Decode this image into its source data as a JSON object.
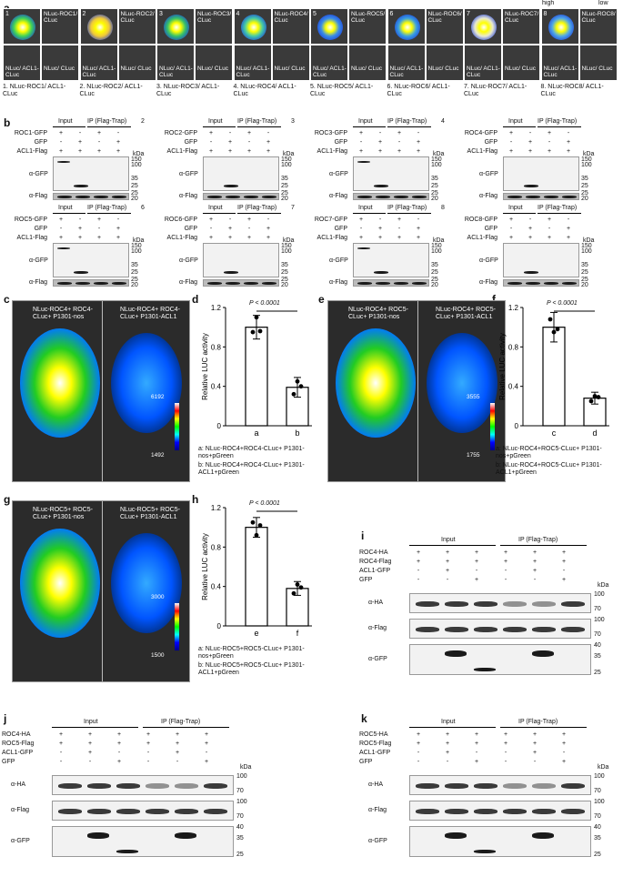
{
  "panel_letters": [
    "a",
    "b",
    "c",
    "d",
    "e",
    "f",
    "g",
    "h",
    "i",
    "j",
    "k"
  ],
  "panel_a": {
    "legend": {
      "high": "high",
      "low": "low"
    },
    "numbers": [
      "1",
      "2",
      "3",
      "4",
      "5",
      "6",
      "7",
      "8"
    ],
    "right_top": [
      "NLuc-ROC1/ CLuc",
      "NLuc-ROC2/ CLuc",
      "NLuc-ROC3/ CLuc",
      "NLuc-ROC4/ CLuc",
      "NLuc-ROC5/ CLuc",
      "NLuc-ROC6/ CLuc",
      "NLuc-ROC7/ CLuc",
      "NLuc-ROC8/ CLuc"
    ],
    "bottom_left": "NLuc/ ACL1-CLuc",
    "bottom_right": "NLuc/ CLuc",
    "captions": [
      "1. NLuc-ROC1/ ACL1-CLuc",
      "2. NLuc-ROC2/ ACL1-CLuc",
      "3. NLuc-ROC3/ ACL1-CLuc",
      "4. NLuc-ROC4/ ACL1-CLuc",
      "5. NLuc-ROC5/ ACL1-CLuc",
      "6. NLuc-ROC6/ ACL1-CLuc",
      "7. NLuc-ROC7/ ACL1-CLuc",
      "8. NLuc-ROC8/ ACL1-CLuc"
    ],
    "blob_colors": [
      "#3fd15a",
      "#f0c93a",
      "#35c06a",
      "#44c9a8",
      "#3a8de8",
      "#3aa0e0",
      "#e9e9d0",
      "#4fa8e8"
    ]
  },
  "panel_b": {
    "input": "Input",
    "ip": "IP (Flag-Trap)",
    "gfp": "GFP",
    "acl1": "ACL1-Flag",
    "kda": "kDa",
    "agfp": "α-GFP",
    "aflag": "α-Flag",
    "markers": [
      "150",
      "100",
      "35",
      "25",
      "25",
      "20"
    ],
    "blots": [
      {
        "num": "1",
        "bait": "ROC1-GFP"
      },
      {
        "num": "2",
        "bait": "ROC2-GFP"
      },
      {
        "num": "3",
        "bait": "ROC3-GFP"
      },
      {
        "num": "4",
        "bait": "ROC4-GFP"
      },
      {
        "num": "5",
        "bait": "ROC5-GFP"
      },
      {
        "num": "6",
        "bait": "ROC6-GFP"
      },
      {
        "num": "7",
        "bait": "ROC7-GFP"
      },
      {
        "num": "8",
        "bait": "ROC8-GFP"
      }
    ],
    "signs_row1": [
      "+",
      "-",
      "+",
      "-"
    ],
    "signs_row2": [
      "-",
      "+",
      "-",
      "+"
    ],
    "signs_row3": [
      "+",
      "+",
      "+",
      "+"
    ]
  },
  "panel_c": {
    "left": "NLuc-ROC4+ ROC4-CLuc+ P1301-nos",
    "right": "NLuc-ROC4+ ROC4-CLuc+ P1301-ACL1",
    "scale_max": "6192",
    "scale_min": "1492"
  },
  "panel_e": {
    "left": "NLuc-ROC4+ ROC5-CLuc+ P1301-nos",
    "right": "NLuc-ROC4+ ROC5-CLuc+ P1301-ACL1",
    "scale_max": "3555",
    "scale_min": "1755"
  },
  "panel_g": {
    "left": "NLuc-ROC5+ ROC5-CLuc+ P1301-nos",
    "right": "NLuc-ROC5+ ROC5-CLuc+ P1301-ACL1",
    "scale_max": "3000",
    "scale_min": "1500"
  },
  "chart_data": [
    {
      "type": "bar",
      "panel": "d",
      "categories": [
        "a",
        "b"
      ],
      "values": [
        1.0,
        0.39
      ],
      "errors": [
        0.12,
        0.1
      ],
      "points": [
        [
          0.95,
          1.1,
          0.96
        ],
        [
          0.32,
          0.45,
          0.4
        ]
      ],
      "ylabel": "Relative LUC activity",
      "ylim": [
        0,
        1.2
      ],
      "yticks": [
        "0",
        "0.4",
        "0.8",
        "1.2"
      ],
      "pvalue": "P < 0.0001",
      "notes": [
        "a: NLuc-ROC4+ROC4-CLuc+ P1301-nos+pGreen",
        "b: NLuc-ROC4+ROC4-CLuc+ P1301-ACL1+pGreen"
      ]
    },
    {
      "type": "bar",
      "panel": "f",
      "categories": [
        "c",
        "d"
      ],
      "values": [
        1.0,
        0.28
      ],
      "errors": [
        0.15,
        0.06
      ],
      "points": [
        [
          1.08,
          0.95,
          0.98
        ],
        [
          0.25,
          0.3,
          0.29
        ]
      ],
      "ylabel": "Relative LUC activity",
      "ylim": [
        0,
        1.2
      ],
      "yticks": [
        "0",
        "0.4",
        "0.8",
        "1.2"
      ],
      "pvalue": "P < 0.0001",
      "notes": [
        "a: NLuc-ROC4+ROC5-CLuc+ P1301-nos+pGreen",
        "b: NLuc-ROC4+ROC5-CLuc+ P1301-ACL1+pGreen"
      ]
    },
    {
      "type": "bar",
      "panel": "h",
      "categories": [
        "e",
        "f"
      ],
      "values": [
        1.0,
        0.38
      ],
      "errors": [
        0.1,
        0.07
      ],
      "points": [
        [
          1.05,
          0.92,
          1.02
        ],
        [
          0.33,
          0.42,
          0.39
        ]
      ],
      "ylabel": "Relative LUC activity",
      "ylim": [
        0,
        1.2
      ],
      "yticks": [
        "0",
        "0.4",
        "0.8",
        "1.2"
      ],
      "pvalue": "P < 0.0001",
      "notes": [
        "a: NLuc-ROC5+ROC5-CLuc+ P1301-nos+pGreen",
        "b: NLuc-ROC5+ROC5-CLuc+ P1301-ACL1+pGreen"
      ]
    }
  ],
  "panel_i": {
    "rows": [
      "ROC4-HA",
      "ROC4-Flag",
      "ACL1-GFP",
      "GFP"
    ]
  },
  "panel_j": {
    "rows": [
      "ROC4-HA",
      "ROC5-Flag",
      "ACL1-GFP",
      "GFP"
    ]
  },
  "panel_k": {
    "rows": [
      "ROC5-HA",
      "ROC5-Flag",
      "ACL1-GFP",
      "GFP"
    ]
  },
  "coip": {
    "input": "Input",
    "ip": "IP (Flag-Trap)",
    "kda": "kDa",
    "aha": "α-HA",
    "aflag": "α-Flag",
    "agfp": "α-GFP",
    "markers": [
      "100",
      "70",
      "100",
      "70",
      "40",
      "35",
      "25"
    ],
    "signs": [
      [
        "+",
        "+",
        "+",
        "+",
        "+",
        "+"
      ],
      [
        "+",
        "+",
        "+",
        "+",
        "+",
        "+"
      ],
      [
        "-",
        "+",
        "-",
        "-",
        "+",
        "-"
      ],
      [
        "-",
        "-",
        "+",
        "-",
        "-",
        "+"
      ]
    ]
  }
}
